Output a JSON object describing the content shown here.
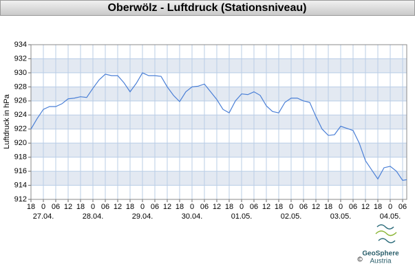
{
  "chart_data": {
    "type": "line",
    "title": "Oberwölz - Luftdruck (Stationsniveau)",
    "y_label": "Luftdruck in hPa",
    "x": [
      0,
      3,
      6,
      9,
      12,
      15,
      18,
      21,
      24,
      27,
      30,
      33,
      36,
      39,
      42,
      45,
      48,
      51,
      54,
      57,
      60,
      63,
      66,
      69,
      72,
      75,
      78,
      81,
      84,
      87,
      90,
      93,
      96,
      99,
      102,
      105,
      108,
      111,
      114,
      117,
      120,
      123,
      126,
      129,
      132,
      135,
      138,
      141,
      144,
      147,
      150,
      153,
      156,
      159,
      162,
      165,
      168,
      171,
      174,
      177,
      180,
      182
    ],
    "series": [
      {
        "name": "Luftdruck",
        "color": "#4a7fd6",
        "values": [
          922.0,
          923.5,
          924.8,
          925.2,
          925.2,
          925.6,
          926.3,
          926.4,
          926.6,
          926.5,
          927.8,
          929.0,
          929.8,
          929.6,
          929.6,
          928.6,
          927.3,
          928.5,
          930.0,
          929.6,
          929.6,
          929.5,
          928.0,
          926.8,
          925.9,
          927.3,
          928.0,
          928.1,
          928.4,
          927.3,
          926.2,
          924.8,
          924.3,
          926.0,
          927.0,
          926.9,
          927.3,
          926.8,
          925.3,
          924.5,
          924.3,
          925.8,
          926.4,
          926.4,
          926.0,
          925.8,
          923.8,
          922.0,
          921.1,
          921.2,
          922.4,
          922.1,
          921.8,
          920.0,
          917.5,
          916.2,
          914.9,
          916.5,
          916.7,
          916.0,
          914.7,
          914.8
        ]
      }
    ],
    "xlim": [
      0,
      182
    ],
    "ylim": [
      912,
      934
    ],
    "yticks": [
      912,
      914,
      916,
      918,
      920,
      922,
      924,
      926,
      928,
      930,
      932,
      934
    ],
    "xticks": [
      {
        "value": 0,
        "label": "18"
      },
      {
        "value": 6,
        "label": "0"
      },
      {
        "value": 12,
        "label": "06"
      },
      {
        "value": 18,
        "label": "12"
      },
      {
        "value": 24,
        "label": "18"
      },
      {
        "value": 30,
        "label": "0"
      },
      {
        "value": 36,
        "label": "06"
      },
      {
        "value": 42,
        "label": "12"
      },
      {
        "value": 48,
        "label": "18"
      },
      {
        "value": 54,
        "label": "0"
      },
      {
        "value": 60,
        "label": "06"
      },
      {
        "value": 66,
        "label": "12"
      },
      {
        "value": 72,
        "label": "18"
      },
      {
        "value": 78,
        "label": "0"
      },
      {
        "value": 84,
        "label": "06"
      },
      {
        "value": 90,
        "label": "12"
      },
      {
        "value": 96,
        "label": "18"
      },
      {
        "value": 102,
        "label": "0"
      },
      {
        "value": 108,
        "label": "06"
      },
      {
        "value": 114,
        "label": "12"
      },
      {
        "value": 120,
        "label": "18"
      },
      {
        "value": 126,
        "label": "0"
      },
      {
        "value": 132,
        "label": "06"
      },
      {
        "value": 138,
        "label": "12"
      },
      {
        "value": 144,
        "label": "18"
      },
      {
        "value": 150,
        "label": "0"
      },
      {
        "value": 156,
        "label": "06"
      },
      {
        "value": 162,
        "label": "12"
      },
      {
        "value": 168,
        "label": "18"
      },
      {
        "value": 174,
        "label": "0"
      },
      {
        "value": 180,
        "label": "06"
      }
    ],
    "date_labels": [
      {
        "value": 6,
        "label": "27.04."
      },
      {
        "value": 30,
        "label": "28.04."
      },
      {
        "value": 54,
        "label": "29.04."
      },
      {
        "value": 78,
        "label": "30.04."
      },
      {
        "value": 102,
        "label": "01.05."
      },
      {
        "value": 126,
        "label": "02.05."
      },
      {
        "value": 150,
        "label": "03.05."
      },
      {
        "value": 174,
        "label": "04.05."
      }
    ],
    "grid": true,
    "bands": true
  },
  "logo": {
    "name": "GeoSphere",
    "sub": "Austria",
    "copyright": "©"
  }
}
